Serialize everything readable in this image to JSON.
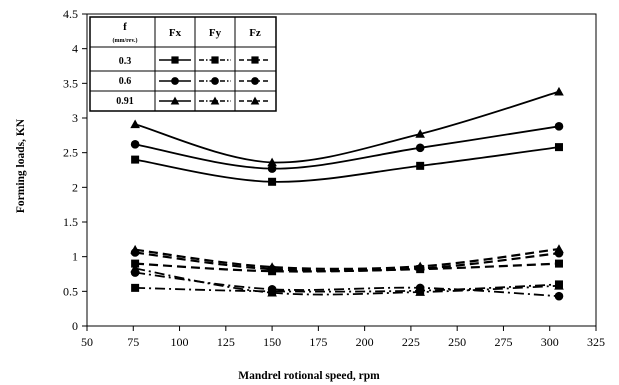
{
  "chart_data": {
    "type": "line",
    "title": "",
    "xlabel": "Mandrel rotional speed, rpm",
    "ylabel": "Forming loads, KN",
    "xlim": [
      50,
      325
    ],
    "ylim": [
      0,
      4.5
    ],
    "xticks": [
      "50",
      "75",
      "100",
      "125",
      "150",
      "175",
      "200",
      "225",
      "250",
      "275",
      "300",
      "325"
    ],
    "yticks": [
      "0",
      "0.5",
      "1",
      "1.5",
      "2",
      "2.5",
      "3",
      "3.5",
      "4",
      "4.5"
    ],
    "x": [
      76,
      150,
      230,
      305
    ],
    "grid": false,
    "legend": {
      "placement": "top-left",
      "header_feed": "f",
      "header_feed_unit": "(mm/rev.)",
      "components": [
        "Fx",
        "Fy",
        "Fz"
      ],
      "feeds": [
        "0.3",
        "0.6",
        "0.91"
      ]
    },
    "series": [
      {
        "name": "Fx 0.3",
        "component": "Fx",
        "feed": "0.3",
        "marker": "square",
        "line": "solid",
        "values": [
          2.4,
          2.08,
          2.31,
          2.58
        ]
      },
      {
        "name": "Fx 0.6",
        "component": "Fx",
        "feed": "0.6",
        "marker": "circle",
        "line": "solid",
        "values": [
          2.62,
          2.27,
          2.57,
          2.88
        ]
      },
      {
        "name": "Fx 0.91",
        "component": "Fx",
        "feed": "0.91",
        "marker": "triangle",
        "line": "solid",
        "values": [
          2.91,
          2.36,
          2.77,
          3.38
        ]
      },
      {
        "name": "Fy 0.3",
        "component": "Fy",
        "feed": "0.3",
        "marker": "square",
        "line": "dashdot",
        "values": [
          0.55,
          0.5,
          0.51,
          0.6
        ]
      },
      {
        "name": "Fy 0.6",
        "component": "Fy",
        "feed": "0.6",
        "marker": "circle",
        "line": "dashdot",
        "values": [
          0.77,
          0.53,
          0.55,
          0.43
        ]
      },
      {
        "name": "Fy 0.91",
        "component": "Fy",
        "feed": "0.91",
        "marker": "triangle",
        "line": "dashdot",
        "values": [
          0.83,
          0.48,
          0.49,
          0.58
        ]
      },
      {
        "name": "Fz 0.3",
        "component": "Fz",
        "feed": "0.3",
        "marker": "square",
        "line": "dashed",
        "values": [
          0.9,
          0.79,
          0.82,
          0.9
        ]
      },
      {
        "name": "Fz 0.6",
        "component": "Fz",
        "feed": "0.6",
        "marker": "circle",
        "line": "dashed",
        "values": [
          1.06,
          0.82,
          0.83,
          1.05
        ]
      },
      {
        "name": "Fz 0.91",
        "component": "Fz",
        "feed": "0.91",
        "marker": "triangle",
        "line": "dashed",
        "values": [
          1.1,
          0.85,
          0.86,
          1.11
        ]
      }
    ]
  }
}
